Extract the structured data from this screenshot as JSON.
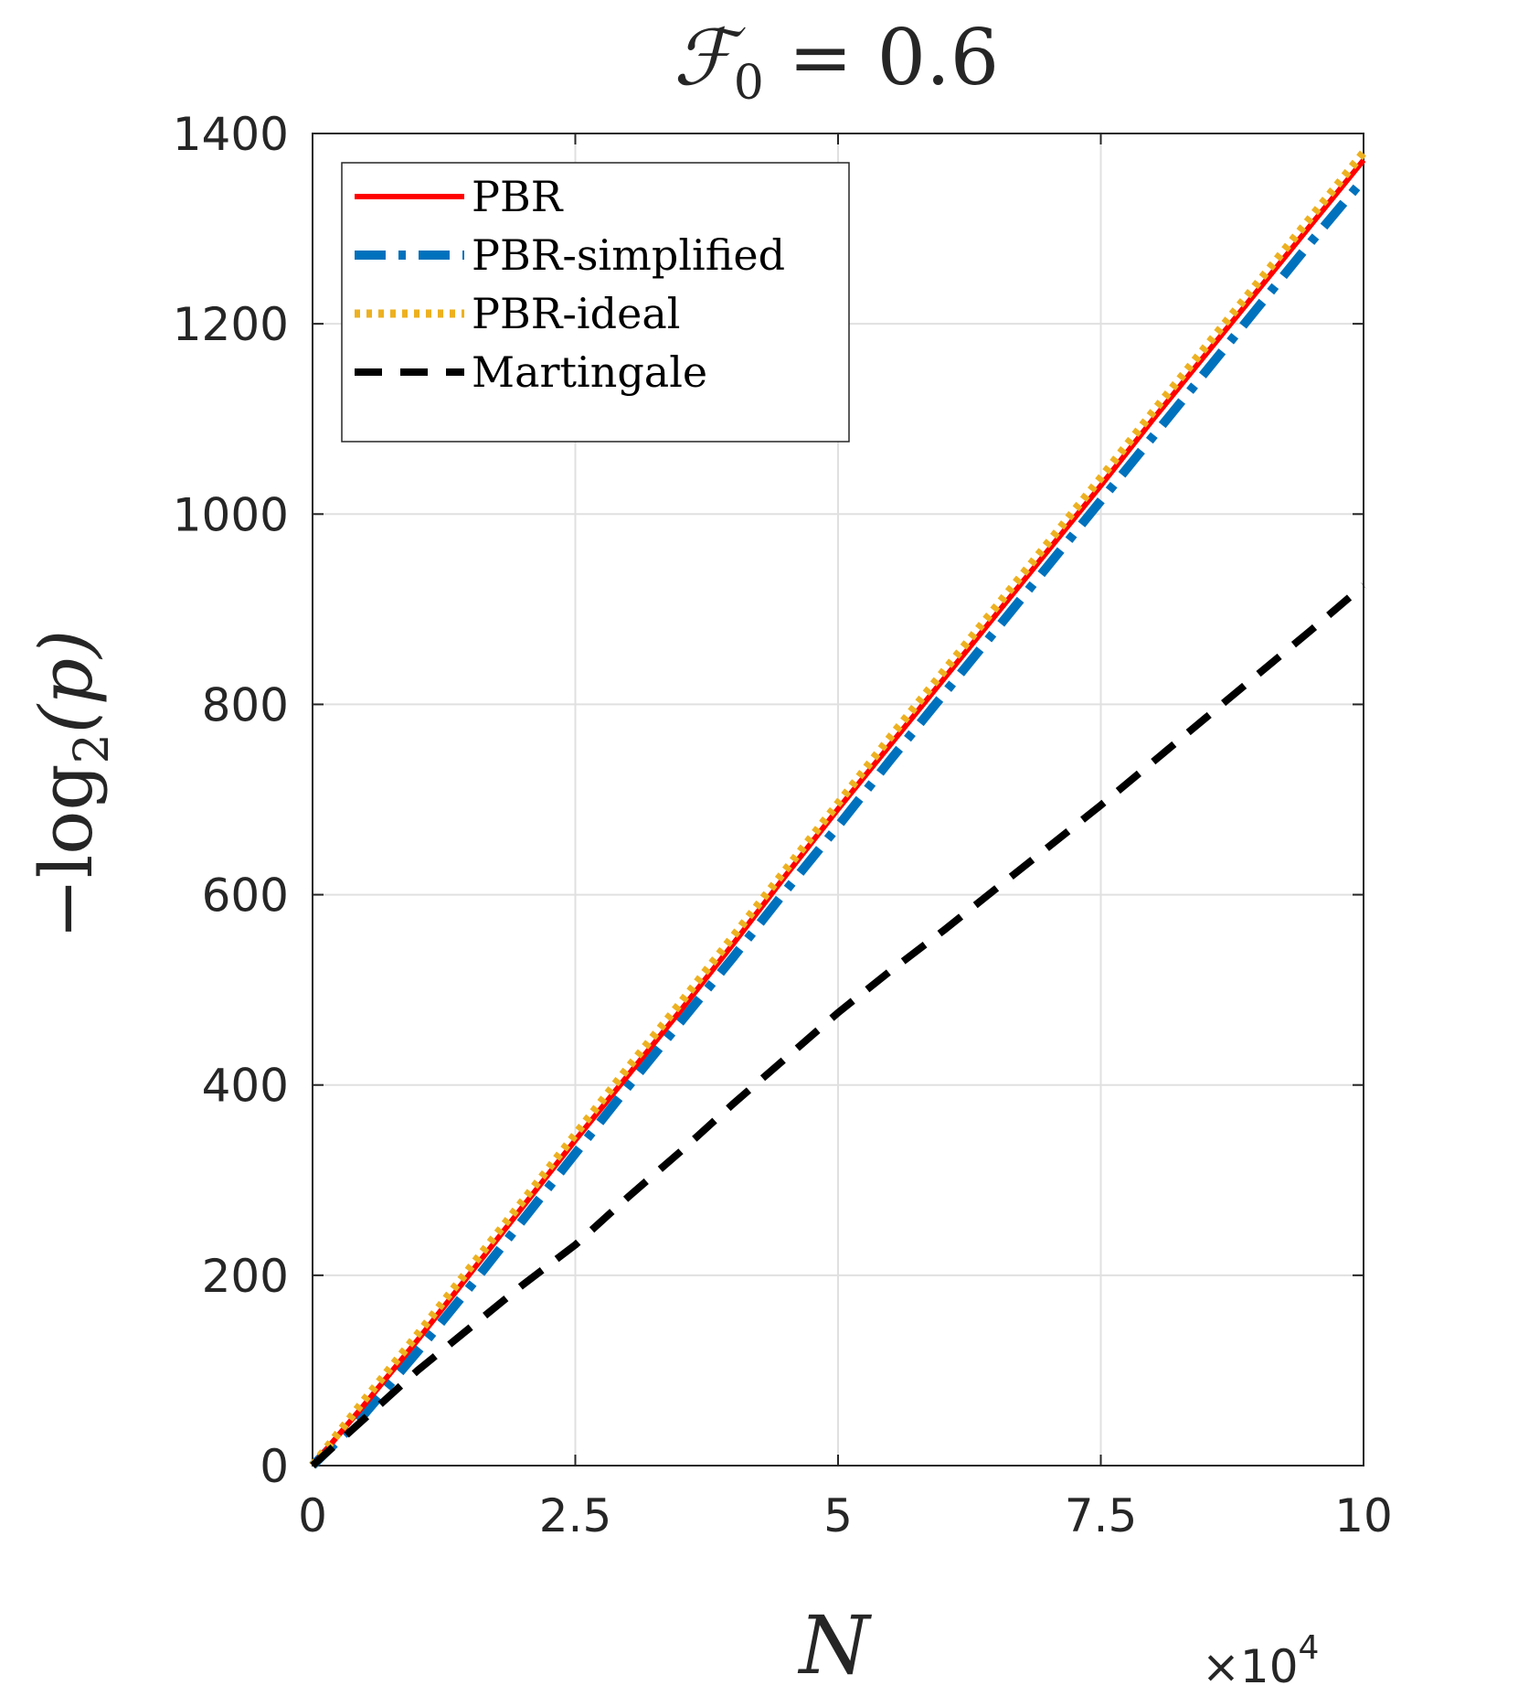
{
  "chart_data": {
    "type": "line",
    "title": {
      "symbol": "ℱ",
      "subscript": "0",
      "rest": " = 0.6"
    },
    "xlabel": "N",
    "ylabel": {
      "prefix": "−log",
      "subscript": "2",
      "arg": "(p)"
    },
    "x_multiplier": {
      "prefix": "×10",
      "exponent": "4"
    },
    "xlim": [
      0,
      10
    ],
    "ylim": [
      0,
      1400
    ],
    "xticks": [
      0,
      2.5,
      5,
      7.5,
      10
    ],
    "xtick_labels": [
      "0",
      "2.5",
      "5",
      "7.5",
      "10"
    ],
    "yticks": [
      0,
      200,
      400,
      600,
      800,
      1000,
      1200,
      1400
    ],
    "ytick_labels": [
      "0",
      "200",
      "400",
      "600",
      "800",
      "1000",
      "1200",
      "1400"
    ],
    "grid": true,
    "legend_position": "top-left",
    "series": [
      {
        "name": "PBR",
        "color": "#ff0000",
        "style": "solid",
        "x": [
          0,
          0.5,
          1,
          1.5,
          2,
          2.5,
          3,
          3.5,
          4,
          4.5,
          5,
          5.5,
          6,
          6.5,
          7,
          7.5,
          8,
          8.5,
          9,
          9.5,
          10
        ],
        "y": [
          0,
          65,
          132,
          202,
          272,
          342,
          410,
          478,
          548,
          620,
          690,
          758,
          826,
          894,
          962,
          1030,
          1100,
          1168,
          1236,
          1304,
          1372
        ]
      },
      {
        "name": "PBR-simplified",
        "color": "#0072bd",
        "style": "dashdot",
        "x": [
          0,
          0.5,
          1,
          1.5,
          2,
          2.5,
          3,
          3.5,
          4,
          4.5,
          5,
          5.5,
          6,
          6.5,
          7,
          7.5,
          8,
          8.5,
          9,
          9.5,
          10
        ],
        "y": [
          0,
          55,
          120,
          188,
          258,
          328,
          398,
          466,
          534,
          604,
          672,
          742,
          810,
          878,
          946,
          1014,
          1082,
          1150,
          1218,
          1286,
          1352
        ]
      },
      {
        "name": "PBR-ideal",
        "color": "#edb120",
        "style": "dotted",
        "x": [
          0,
          0.5,
          1,
          1.5,
          2,
          2.5,
          3,
          3.5,
          4,
          4.5,
          5,
          5.5,
          6,
          6.5,
          7,
          7.5,
          8,
          8.5,
          9,
          9.5,
          10
        ],
        "y": [
          0,
          70,
          138,
          208,
          278,
          348,
          418,
          486,
          556,
          626,
          696,
          766,
          834,
          902,
          970,
          1038,
          1108,
          1176,
          1244,
          1312,
          1380
        ]
      },
      {
        "name": "Martingale",
        "color": "#000000",
        "style": "dashed",
        "x": [
          0,
          0.5,
          1,
          1.5,
          2,
          2.5,
          3,
          3.5,
          4,
          4.5,
          5,
          5.5,
          6,
          6.5,
          7,
          7.5,
          8,
          8.5,
          9,
          9.5,
          10
        ],
        "y": [
          0,
          50,
          100,
          145,
          190,
          232,
          282,
          330,
          380,
          428,
          476,
          520,
          562,
          606,
          650,
          694,
          740,
          786,
          832,
          878,
          925
        ]
      }
    ]
  }
}
